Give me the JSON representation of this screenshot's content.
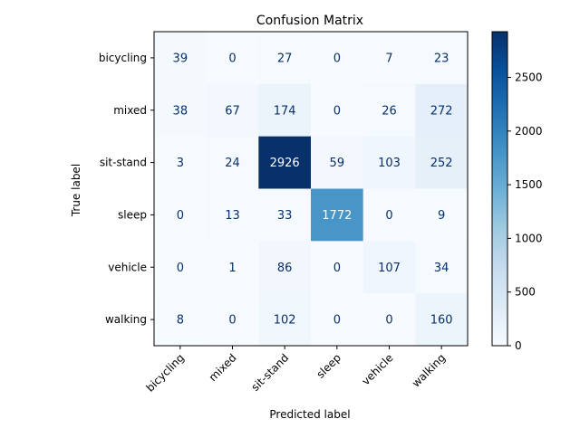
{
  "chart_data": {
    "type": "heatmap",
    "title": "Confusion Matrix",
    "xlabel": "Predicted label",
    "ylabel": "True label",
    "x_categories": [
      "bicycling",
      "mixed",
      "sit-stand",
      "sleep",
      "vehicle",
      "walking"
    ],
    "y_categories": [
      "bicycling",
      "mixed",
      "sit-stand",
      "sleep",
      "vehicle",
      "walking"
    ],
    "values": [
      [
        39,
        0,
        27,
        0,
        7,
        23
      ],
      [
        38,
        67,
        174,
        0,
        26,
        272
      ],
      [
        3,
        24,
        2926,
        59,
        103,
        252
      ],
      [
        0,
        13,
        33,
        1772,
        0,
        9
      ],
      [
        0,
        1,
        86,
        0,
        107,
        34
      ],
      [
        8,
        0,
        102,
        0,
        0,
        160
      ]
    ],
    "colormap": "Blues",
    "colorbar": {
      "range": [
        0,
        2926
      ],
      "ticks": [
        0,
        500,
        1000,
        1500,
        2000,
        2500
      ],
      "tick_labels": [
        "0",
        "500",
        "1000",
        "1500",
        "2000",
        "2500"
      ]
    },
    "text_color_light": "#ffffff",
    "text_color_dark": "#08306b"
  }
}
